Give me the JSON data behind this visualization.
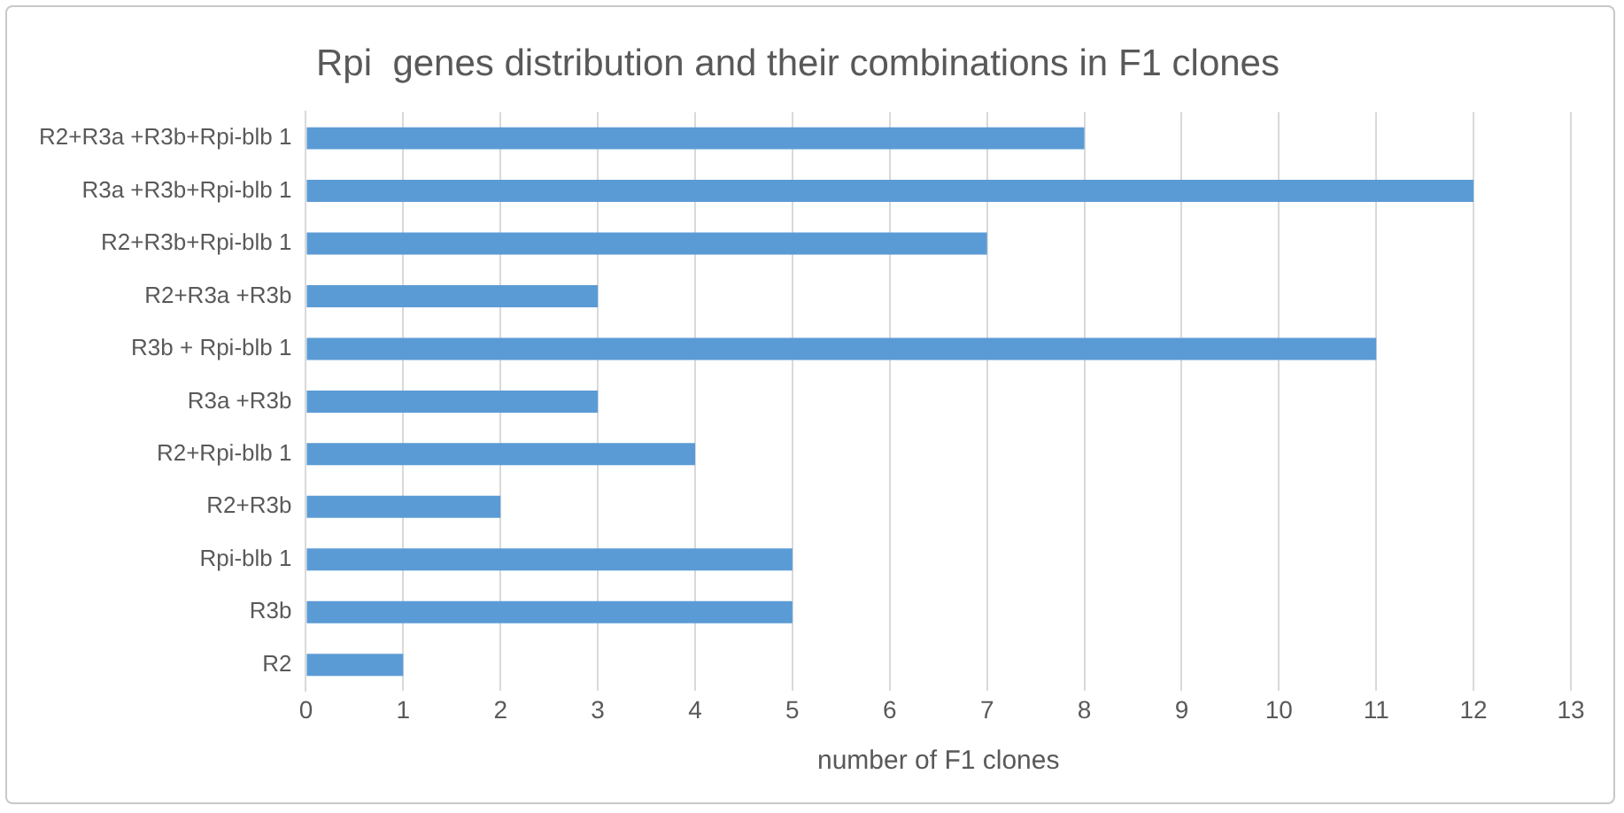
{
  "chart_data": {
    "type": "bar",
    "orientation": "horizontal",
    "title": "Rpi  genes distribution and their combinations in F1 clones",
    "xlabel": "number of F1 clones",
    "categories": [
      "R2+R3a +R3b+Rpi-blb 1",
      "R3a +R3b+Rpi-blb 1",
      "R2+R3b+Rpi-blb 1",
      "R2+R3a +R3b",
      "R3b + Rpi-blb 1",
      "R3a +R3b",
      "R2+Rpi-blb 1",
      "R2+R3b",
      "Rpi-blb 1",
      "R3b",
      "R2"
    ],
    "values": [
      8,
      12,
      7,
      3,
      11,
      3,
      4,
      2,
      5,
      5,
      1
    ],
    "color": "#5b9bd5",
    "xlim": [
      0,
      13
    ],
    "xticks": [
      0,
      1,
      2,
      3,
      4,
      5,
      6,
      7,
      8,
      9,
      10,
      11,
      12,
      13
    ],
    "grid": "x"
  }
}
